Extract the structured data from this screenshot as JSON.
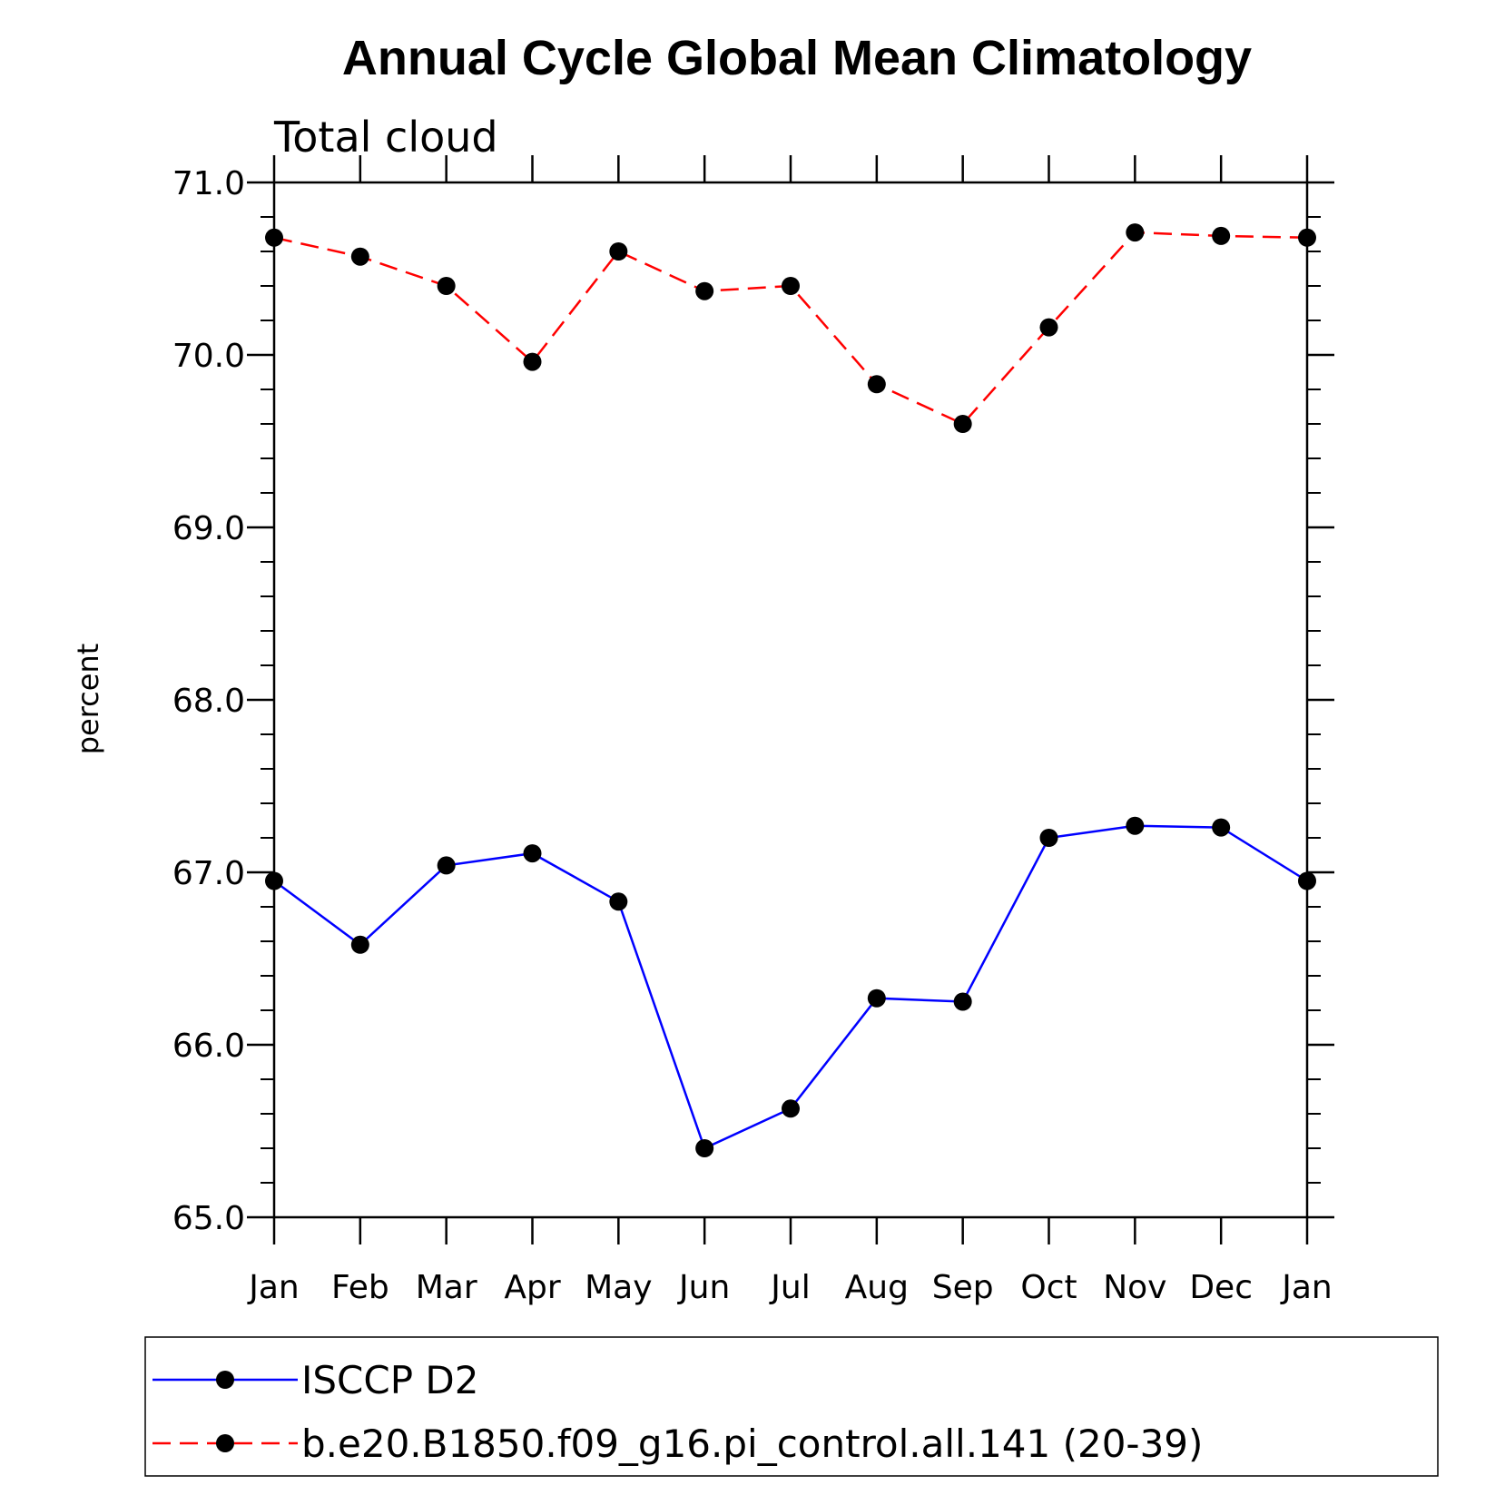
{
  "chart_data": {
    "type": "line",
    "title": "Annual Cycle Global Mean Climatology",
    "subtitle": "Total cloud",
    "xlabel": "",
    "ylabel": "percent",
    "categories": [
      "Jan",
      "Feb",
      "Mar",
      "Apr",
      "May",
      "Jun",
      "Jul",
      "Aug",
      "Sep",
      "Oct",
      "Nov",
      "Dec",
      "Jan"
    ],
    "ylim": [
      65.0,
      71.0
    ],
    "yticks": [
      "65.0",
      "66.0",
      "67.0",
      "68.0",
      "69.0",
      "70.0",
      "71.0"
    ],
    "grid": false,
    "legend_position": "bottom",
    "series": [
      {
        "name": "ISCCP D2",
        "color": "#0000ff",
        "dash": "solid",
        "values": [
          66.95,
          66.58,
          67.04,
          67.11,
          66.83,
          65.4,
          65.63,
          66.27,
          66.25,
          67.2,
          67.27,
          67.26,
          66.95
        ]
      },
      {
        "name": "b.e20.B1850.f09_g16.pi_control.all.141 (20-39)",
        "color": "#ff0000",
        "dash": "dashed",
        "values": [
          70.68,
          70.57,
          70.4,
          69.96,
          70.6,
          70.37,
          70.4,
          69.83,
          69.6,
          70.16,
          70.71,
          70.69,
          70.68
        ]
      }
    ]
  }
}
